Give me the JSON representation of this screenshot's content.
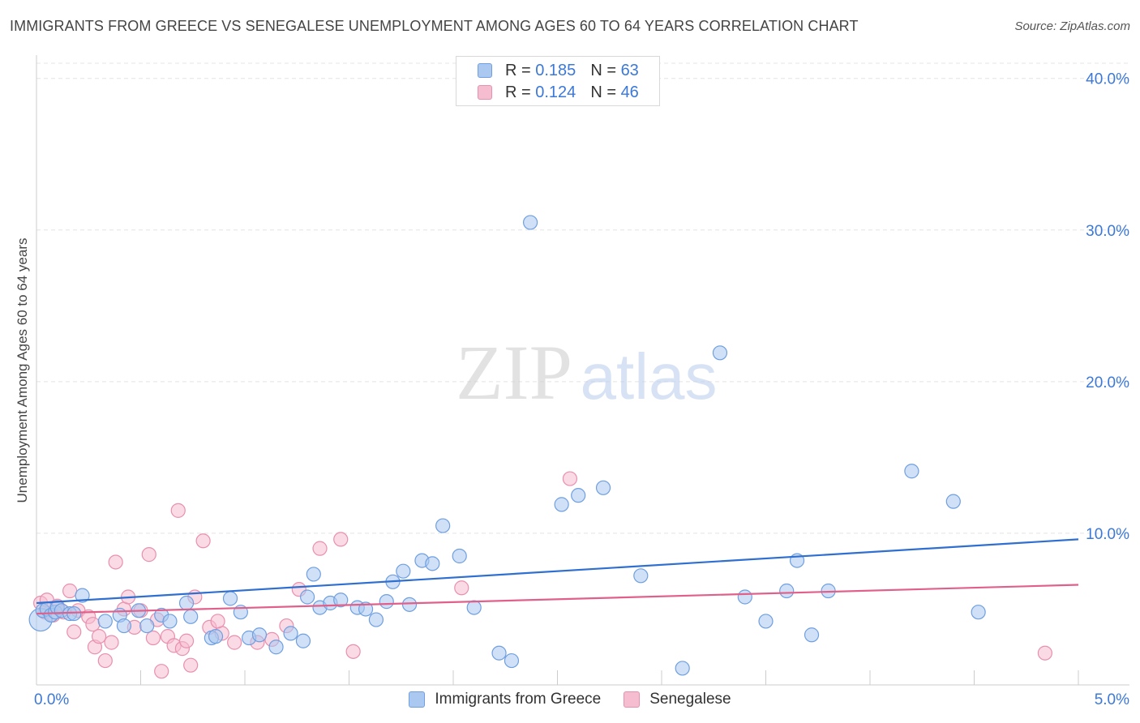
{
  "title": "IMMIGRANTS FROM GREECE VS SENEGALESE UNEMPLOYMENT AMONG AGES 60 TO 64 YEARS CORRELATION CHART",
  "source": "Source: ZipAtlas.com",
  "watermark": {
    "zip": "ZIP",
    "atlas": "atlas"
  },
  "legend": {
    "r_label": "R =",
    "n_label": "N =",
    "items": [
      {
        "name": "Immigrants from Greece",
        "r": "0.185",
        "n": "63"
      },
      {
        "name": "Senegalese",
        "r": "0.124",
        "n": "46"
      }
    ]
  },
  "colors": {
    "blue_fill": "#aac8f0",
    "blue_stroke": "#6f9fe0",
    "blue_line": "#2f6fd0",
    "pink_fill": "#f6bcd0",
    "pink_stroke": "#e890ad",
    "pink_line": "#e0608a",
    "axis_label": "#3b78d8"
  },
  "chart_data": {
    "type": "scatter",
    "title": "IMMIGRANTS FROM GREECE VS SENEGALESE UNEMPLOYMENT AMONG AGES 60 TO 64 YEARS CORRELATION CHART",
    "xlabel": "",
    "ylabel": "Unemployment Among Ages 60 to 64 years",
    "xlim": [
      0,
      5
    ],
    "ylim": [
      0,
      41
    ],
    "x_tick_labels": [
      "0.0%",
      "5.0%"
    ],
    "y_ticks": [
      10,
      20,
      30,
      40
    ],
    "y_tick_labels": [
      "10.0%",
      "20.0%",
      "30.0%",
      "40.0%"
    ],
    "grid": true,
    "series": [
      {
        "name": "Immigrants from Greece",
        "trend": {
          "x": [
            0,
            5
          ],
          "y": [
            5.4,
            9.6
          ]
        },
        "points": [
          [
            0.02,
            4.3
          ],
          [
            0.03,
            4.9
          ],
          [
            0.05,
            5.0
          ],
          [
            0.07,
            4.6
          ],
          [
            0.09,
            4.8
          ],
          [
            0.1,
            5.1
          ],
          [
            0.12,
            4.9
          ],
          [
            0.16,
            4.7
          ],
          [
            0.18,
            4.7
          ],
          [
            0.22,
            5.9
          ],
          [
            0.33,
            4.2
          ],
          [
            0.4,
            4.6
          ],
          [
            0.42,
            3.9
          ],
          [
            0.49,
            4.9
          ],
          [
            0.53,
            3.9
          ],
          [
            0.6,
            4.6
          ],
          [
            0.64,
            4.2
          ],
          [
            0.72,
            5.4
          ],
          [
            0.74,
            4.5
          ],
          [
            0.84,
            3.1
          ],
          [
            0.86,
            3.2
          ],
          [
            0.93,
            5.7
          ],
          [
            0.98,
            4.8
          ],
          [
            1.02,
            3.1
          ],
          [
            1.07,
            3.3
          ],
          [
            1.15,
            2.5
          ],
          [
            1.22,
            3.4
          ],
          [
            1.28,
            2.9
          ],
          [
            1.33,
            7.3
          ],
          [
            1.3,
            5.8
          ],
          [
            1.36,
            5.1
          ],
          [
            1.41,
            5.4
          ],
          [
            1.46,
            5.6
          ],
          [
            1.54,
            5.1
          ],
          [
            1.58,
            5.0
          ],
          [
            1.63,
            4.3
          ],
          [
            1.68,
            5.5
          ],
          [
            1.71,
            6.8
          ],
          [
            1.76,
            7.5
          ],
          [
            1.79,
            5.3
          ],
          [
            1.85,
            8.2
          ],
          [
            1.9,
            8.0
          ],
          [
            1.95,
            10.5
          ],
          [
            2.03,
            8.5
          ],
          [
            2.1,
            5.1
          ],
          [
            2.22,
            2.1
          ],
          [
            2.28,
            1.6
          ],
          [
            2.37,
            30.5
          ],
          [
            2.52,
            11.9
          ],
          [
            2.6,
            12.5
          ],
          [
            2.72,
            13.0
          ],
          [
            2.9,
            7.2
          ],
          [
            3.1,
            1.1
          ],
          [
            3.28,
            21.9
          ],
          [
            3.4,
            5.8
          ],
          [
            3.5,
            4.2
          ],
          [
            3.6,
            6.2
          ],
          [
            3.65,
            8.2
          ],
          [
            3.72,
            3.3
          ],
          [
            3.8,
            6.2
          ],
          [
            4.2,
            14.1
          ],
          [
            4.4,
            12.1
          ],
          [
            4.52,
            4.8
          ]
        ]
      },
      {
        "name": "Senegalese",
        "trend": {
          "x": [
            0,
            5
          ],
          "y": [
            4.7,
            6.6
          ]
        },
        "points": [
          [
            0.02,
            5.4
          ],
          [
            0.04,
            4.8
          ],
          [
            0.05,
            5.6
          ],
          [
            0.08,
            4.6
          ],
          [
            0.1,
            5.2
          ],
          [
            0.13,
            4.8
          ],
          [
            0.16,
            6.2
          ],
          [
            0.18,
            3.5
          ],
          [
            0.2,
            4.9
          ],
          [
            0.25,
            4.5
          ],
          [
            0.27,
            4.0
          ],
          [
            0.28,
            2.5
          ],
          [
            0.3,
            3.2
          ],
          [
            0.33,
            1.6
          ],
          [
            0.38,
            8.1
          ],
          [
            0.42,
            5.0
          ],
          [
            0.44,
            5.8
          ],
          [
            0.47,
            3.8
          ],
          [
            0.5,
            4.9
          ],
          [
            0.54,
            8.6
          ],
          [
            0.56,
            3.1
          ],
          [
            0.6,
            0.9
          ],
          [
            0.63,
            3.2
          ],
          [
            0.66,
            2.6
          ],
          [
            0.68,
            11.5
          ],
          [
            0.7,
            2.4
          ],
          [
            0.72,
            2.9
          ],
          [
            0.74,
            1.3
          ],
          [
            0.76,
            5.8
          ],
          [
            0.8,
            9.5
          ],
          [
            0.83,
            3.8
          ],
          [
            0.89,
            3.4
          ],
          [
            0.95,
            2.8
          ],
          [
            1.06,
            2.8
          ],
          [
            1.2,
            3.9
          ],
          [
            1.26,
            6.3
          ],
          [
            1.36,
            9.0
          ],
          [
            1.46,
            9.6
          ],
          [
            1.52,
            2.2
          ],
          [
            2.04,
            6.4
          ],
          [
            2.56,
            13.6
          ],
          [
            4.84,
            2.1
          ],
          [
            1.13,
            3.0
          ],
          [
            0.58,
            4.3
          ],
          [
            0.36,
            2.8
          ],
          [
            0.87,
            4.2
          ]
        ]
      }
    ]
  }
}
